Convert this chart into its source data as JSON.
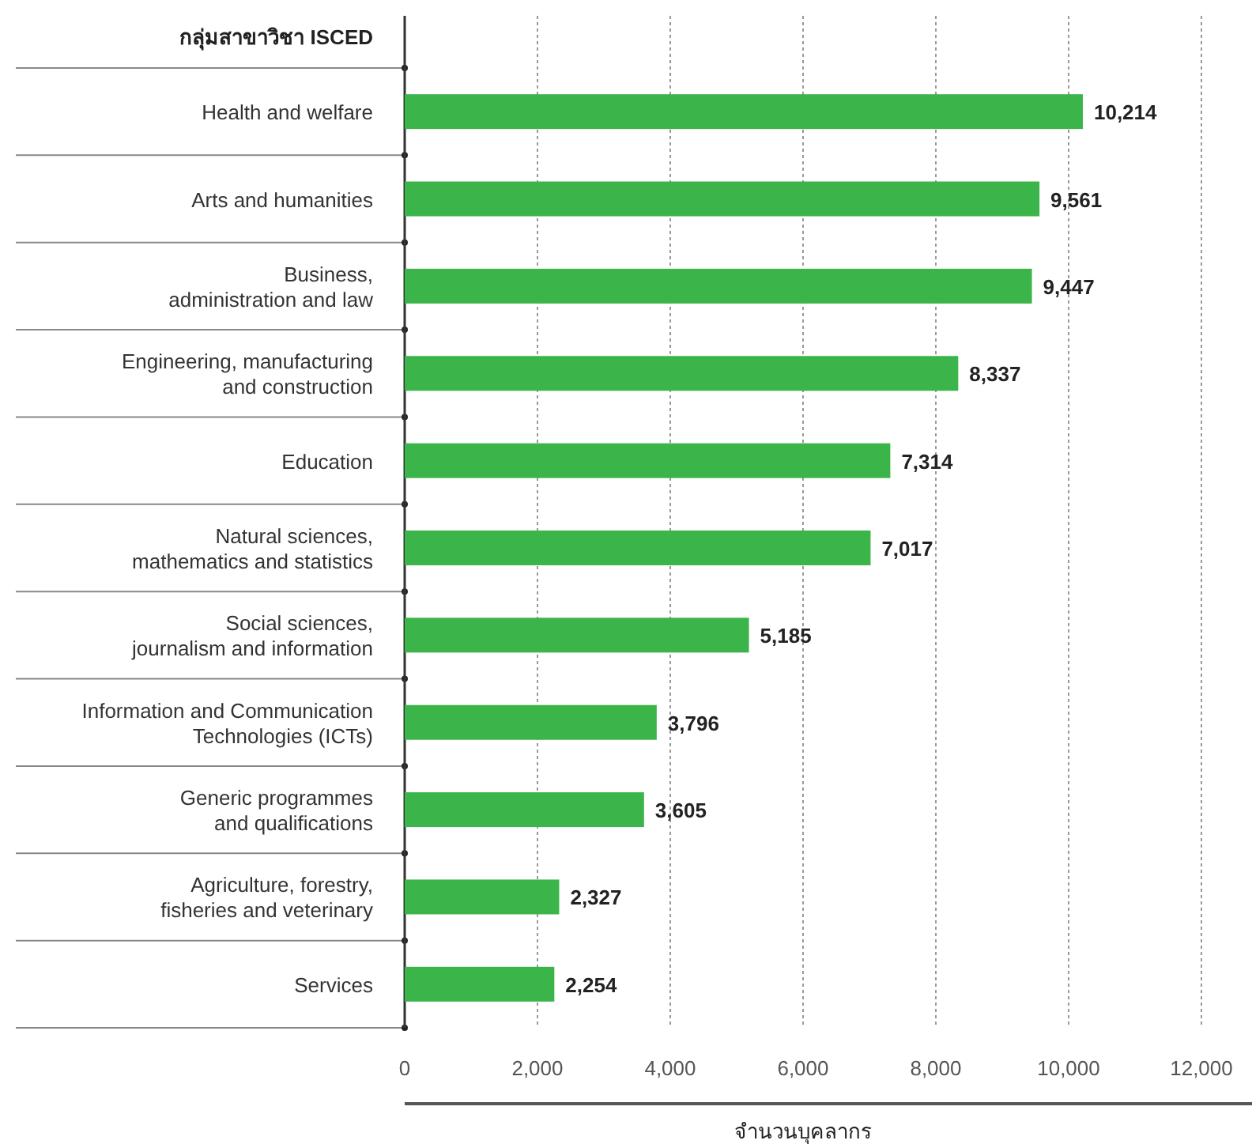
{
  "chart_data": {
    "type": "bar",
    "orientation": "horizontal",
    "ylabel": "กลุ่มสาขาวิชา ISCED",
    "xlabel": "จำนวนบุคลากร",
    "categories": [
      "Health and welfare",
      "Arts and humanities",
      "Business,\nadministration and law",
      "Engineering, manufacturing\nand construction",
      "Education",
      "Natural sciences,\nmathematics and statistics",
      "Social sciences,\njournalism and information",
      "Information and Communication\nTechnologies (ICTs)",
      "Generic programmes\nand qualifications",
      "Agriculture, forestry,\nfisheries and veterinary",
      "Services"
    ],
    "values": [
      10214,
      9561,
      9447,
      8337,
      7314,
      7017,
      5185,
      3796,
      3605,
      2327,
      2254
    ],
    "value_labels": [
      "10,214",
      "9,561",
      "9,447",
      "8,337",
      "7,314",
      "7,017",
      "5,185",
      "3,796",
      "3,605",
      "2,327",
      "2,254"
    ],
    "color": "#3bb44a",
    "xlim": [
      0,
      12000
    ],
    "xticks": [
      0,
      {
        "value": 2000,
        "label": "2,000"
      },
      {
        "value": 4000,
        "label": "4,000"
      },
      {
        "value": 6000,
        "label": "6,000"
      },
      {
        "value": 8000,
        "label": "8,000"
      },
      {
        "value": 10000,
        "label": "10,000"
      },
      {
        "value": 12000,
        "label": "12,000"
      }
    ],
    "grid": "x"
  }
}
